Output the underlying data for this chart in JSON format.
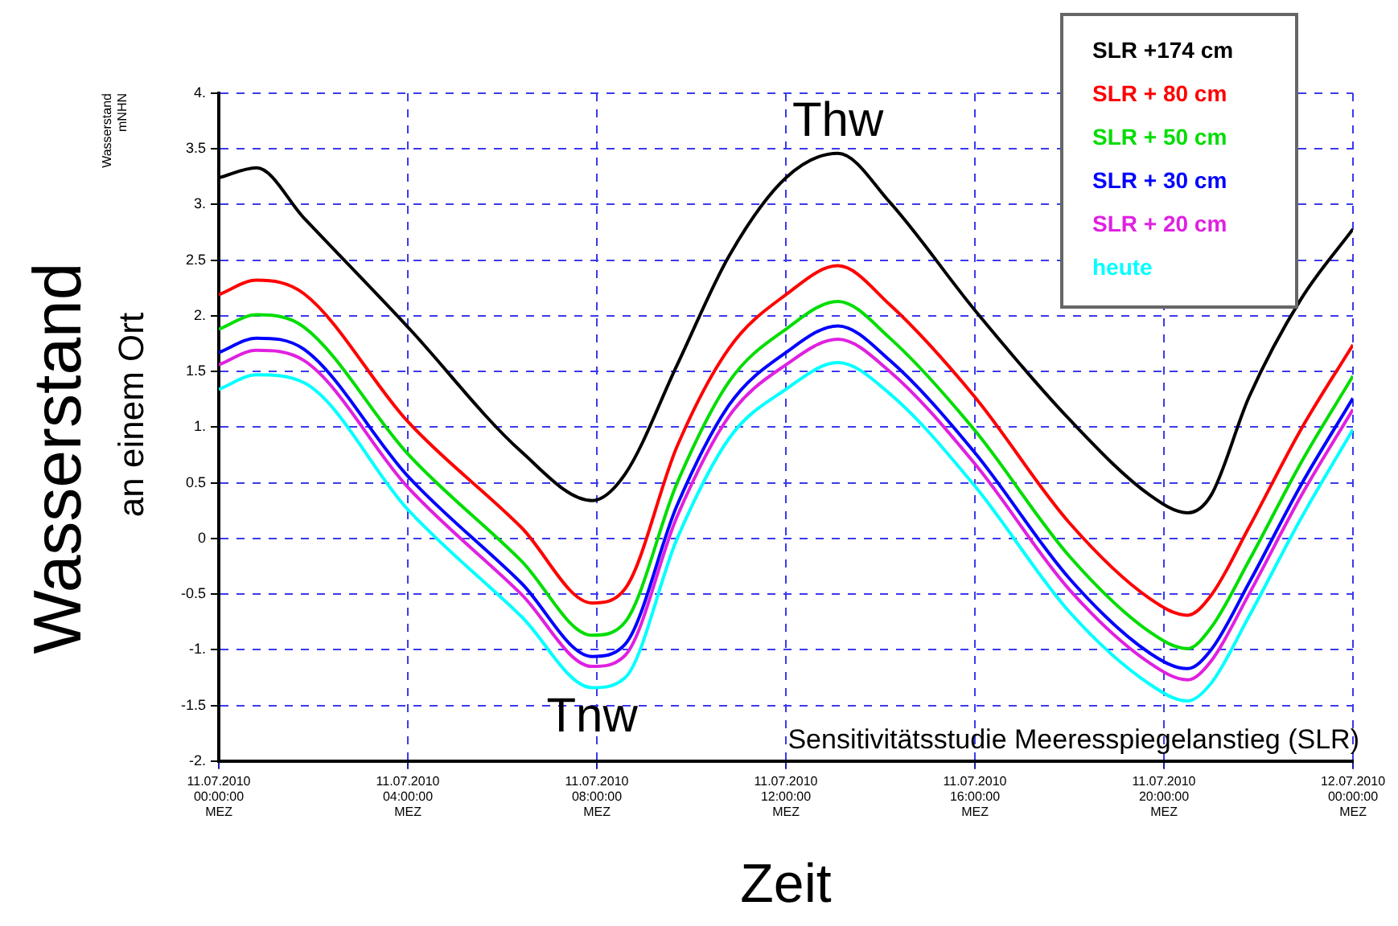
{
  "chart_data": {
    "type": "line",
    "ylabel": "Wasserstand\nmNHN",
    "xlabel": "Zeit",
    "annotations": [
      "Wasserstand",
      "an einem Ort",
      "Sensitivitätsstudie Meeresspiegelanstieg (SLR)",
      {
        "text": "Thw",
        "x": "2010-07-11T13:06",
        "y": 3.46
      },
      {
        "text": "Tnw",
        "x": "2010-07-11T07:54",
        "y": -1.34
      }
    ],
    "x": [
      "2010-07-11T00:00",
      "2010-07-11T00:48",
      "2010-07-11T01:48",
      "2010-07-11T04:00",
      "2010-07-11T06:24",
      "2010-07-11T07:54",
      "2010-07-11T08:36",
      "2010-07-11T09:42",
      "2010-07-11T10:48",
      "2010-07-11T12:00",
      "2010-07-11T13:06",
      "2010-07-11T14:12",
      "2010-07-11T16:00",
      "2010-07-11T18:00",
      "2010-07-11T19:42",
      "2010-07-11T20:30",
      "2010-07-11T21:00",
      "2010-07-11T21:48",
      "2010-07-11T22:54",
      "2010-07-12T00:00"
    ],
    "series": [
      {
        "name": "SLR +174 cm",
        "color": "#000000",
        "values": [
          3.24,
          3.33,
          2.88,
          1.9,
          0.78,
          0.34,
          0.58,
          1.56,
          2.54,
          3.24,
          3.46,
          3.02,
          2.05,
          1.07,
          0.39,
          0.23,
          0.39,
          1.27,
          2.15,
          2.78
        ]
      },
      {
        "name": "SLR + 80 cm",
        "color": "#ff0000",
        "values": [
          2.19,
          2.32,
          2.2,
          1.05,
          0.1,
          -0.58,
          -0.45,
          0.83,
          1.71,
          2.19,
          2.45,
          2.1,
          1.27,
          0.14,
          -0.54,
          -0.69,
          -0.51,
          0.1,
          0.98,
          1.74
        ]
      },
      {
        "name": "SLR + 50 cm",
        "color": "#00dd00",
        "values": [
          1.88,
          2.01,
          1.9,
          0.76,
          -0.2,
          -0.87,
          -0.75,
          0.5,
          1.41,
          1.88,
          2.13,
          1.8,
          0.97,
          -0.16,
          -0.84,
          -0.99,
          -0.8,
          -0.2,
          0.68,
          1.46
        ]
      },
      {
        "name": "SLR + 30 cm",
        "color": "#0000ff",
        "values": [
          1.67,
          1.8,
          1.7,
          0.56,
          -0.4,
          -1.06,
          -0.95,
          0.3,
          1.2,
          1.67,
          1.91,
          1.6,
          0.77,
          -0.36,
          -1.03,
          -1.17,
          -1.0,
          -0.4,
          0.48,
          1.26
        ]
      },
      {
        "name": "SLR + 20 cm",
        "color": "#e020e0",
        "values": [
          1.56,
          1.69,
          1.6,
          0.46,
          -0.5,
          -1.15,
          -1.05,
          0.2,
          1.1,
          1.56,
          1.79,
          1.5,
          0.67,
          -0.46,
          -1.12,
          -1.27,
          -1.1,
          -0.5,
          0.38,
          1.16
        ]
      },
      {
        "name": "heute",
        "color": "#00ffff",
        "values": [
          1.34,
          1.47,
          1.4,
          0.26,
          -0.7,
          -1.34,
          -1.25,
          0.0,
          0.9,
          1.34,
          1.58,
          1.3,
          0.47,
          -0.66,
          -1.31,
          -1.46,
          -1.3,
          -0.7,
          0.18,
          0.98
        ]
      }
    ],
    "xlim": [
      "2010-07-11T00:00",
      "2010-07-12T00:00"
    ],
    "xticks": [
      {
        "value": "2010-07-11T00:00",
        "label": "11.07.2010\n00:00:00\nMEZ"
      },
      {
        "value": "2010-07-11T04:00",
        "label": "11.07.2010\n04:00:00\nMEZ"
      },
      {
        "value": "2010-07-11T08:00",
        "label": "11.07.2010\n08:00:00\nMEZ"
      },
      {
        "value": "2010-07-11T12:00",
        "label": "11.07.2010\n12:00:00\nMEZ"
      },
      {
        "value": "2010-07-11T16:00",
        "label": "11.07.2010\n16:00:00\nMEZ"
      },
      {
        "value": "2010-07-11T20:00",
        "label": "11.07.2010\n20:00:00\nMEZ"
      },
      {
        "value": "2010-07-12T00:00",
        "label": "12.07.2010\n00:00:00\nMEZ"
      }
    ],
    "ylim": [
      -2,
      4
    ],
    "yticks": [
      {
        "value": -2,
        "label": "-2."
      },
      -1.5,
      {
        "value": -1,
        "label": "-1."
      },
      -0.5,
      0,
      0.5,
      {
        "value": 1,
        "label": "1."
      },
      1.5,
      {
        "value": 2,
        "label": "2."
      },
      2.5,
      {
        "value": 3,
        "label": "3."
      },
      3.5,
      {
        "value": 4,
        "label": "4."
      }
    ],
    "grid": true,
    "legend": "top right"
  }
}
